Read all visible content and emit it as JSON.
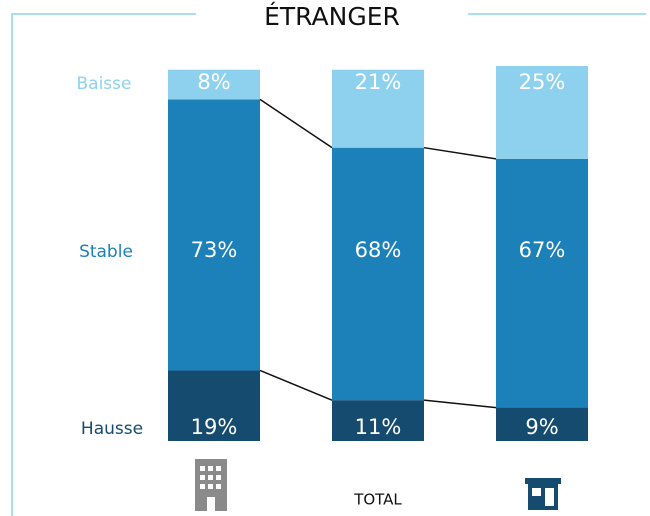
{
  "chart_data": {
    "type": "stacked_bar",
    "title": "ÉTRANGER",
    "categories": [
      null,
      "TOTAL",
      null
    ],
    "series": [
      {
        "name": "Hausse",
        "color": "#164b70",
        "values": [
          19,
          11,
          9
        ],
        "value_labels": [
          "19%",
          "11%",
          "9%"
        ]
      },
      {
        "name": "Stable",
        "color": "#1c80b9",
        "values": [
          73,
          68,
          67
        ],
        "value_labels": [
          "73%",
          "68%",
          "67%"
        ]
      },
      {
        "name": "Baisse",
        "color": "#8ed1ef",
        "values": [
          8,
          21,
          25
        ],
        "value_labels": [
          "8%",
          "21%",
          "25%"
        ]
      }
    ],
    "ylim": [
      0,
      101
    ]
  }
}
